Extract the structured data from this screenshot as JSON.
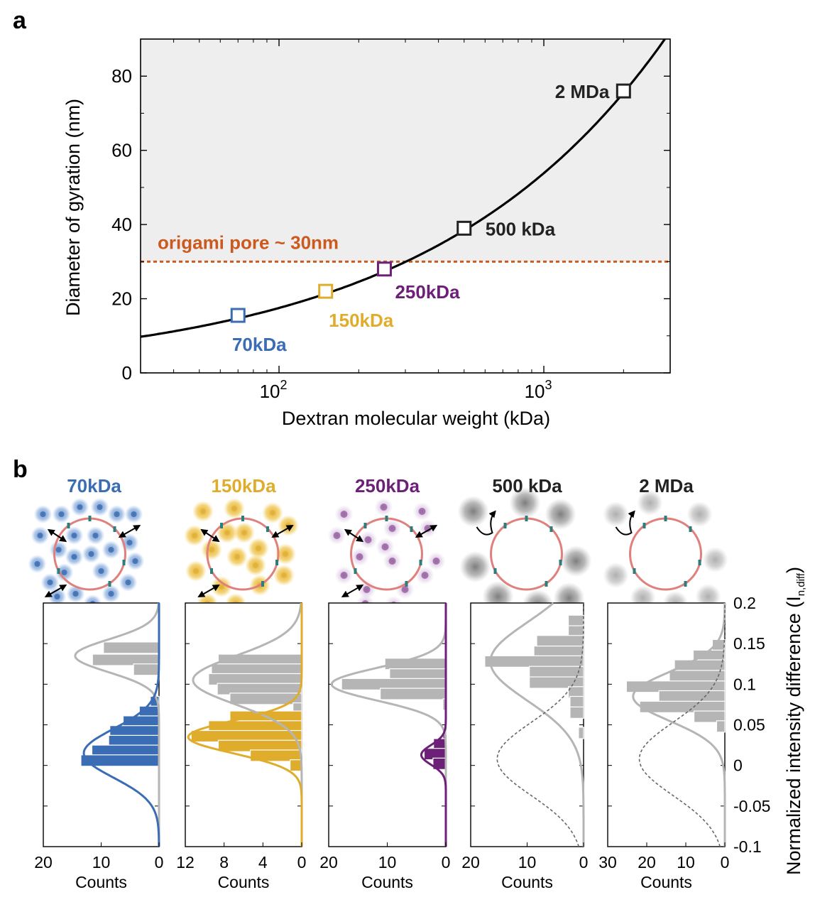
{
  "panel_a": {
    "letter": "a",
    "colors": {
      "shade": "#eeeeee",
      "curve": "#000000",
      "threshold": "#cc5a1e"
    },
    "chart_data": {
      "type": "line",
      "xlabel": "Dextran molecular weight (kDa)",
      "ylabel": "Diameter of gyration (nm)",
      "xscale": "log",
      "xlim": [
        30,
        3000
      ],
      "ylim": [
        0,
        90
      ],
      "yticks": [
        0,
        20,
        40,
        60,
        80
      ],
      "xticks": [
        {
          "value": 100,
          "base": "10",
          "exp": "2"
        },
        {
          "value": 1000,
          "base": "10",
          "exp": "3"
        }
      ],
      "grid": false,
      "curve": {
        "coef": 0.0855,
        "exponent": 0.5,
        "x_range": [
          30,
          3000
        ]
      },
      "shaded_region": {
        "y_from": 30,
        "y_to": 90
      },
      "threshold": {
        "y": 30,
        "label": "origami pore ~ 30nm"
      },
      "points": [
        {
          "x": 70,
          "y": 15.5,
          "label": "70kDa",
          "color": "#3a6db3",
          "label_pos": "below"
        },
        {
          "x": 150,
          "y": 22,
          "label": "150kDa",
          "color": "#e0ac2b",
          "label_pos": "below"
        },
        {
          "x": 250,
          "y": 28,
          "label": "250kDa",
          "color": "#6d2077",
          "label_pos": "below-right"
        },
        {
          "x": 500,
          "y": 39,
          "label": "500 kDa",
          "color": "#222222",
          "label_pos": "right"
        },
        {
          "x": 2000,
          "y": 76,
          "label": "2 MDa",
          "color": "#222222",
          "label_pos": "left"
        }
      ]
    }
  },
  "panel_b": {
    "letter": "b",
    "ylabel_main": "Normalized intensity difference (I",
    "ylabel_sub": "n,diff",
    "ylabel_close": ")",
    "xlabel": "Counts",
    "ylim": [
      -0.1,
      0.2
    ],
    "yticks": [
      "0.2",
      "0.15",
      "0.1",
      "0.05",
      "0",
      "-0.05",
      "-0.1"
    ],
    "gray_color": "#b5b5b5",
    "chart_data": [
      {
        "type": "bar",
        "title": "70kDa",
        "title_color": "#3a6db3",
        "color": "#3a6db3",
        "xlim": [
          20,
          0
        ],
        "xticks": [
          "20",
          "10",
          "0"
        ],
        "gray_gauss": {
          "mu": 0.135,
          "sigma": 0.02,
          "amp": 14.5
        },
        "color_gauss": {
          "mu": 0.015,
          "sigma": 0.03,
          "amp": 13
        },
        "gray_bins": [
          {
            "y": 0.145,
            "count": 9.6
          },
          {
            "y": 0.13,
            "count": 11.5
          },
          {
            "y": 0.118,
            "count": 4.4
          }
        ],
        "color_bins": [
          {
            "y": 0.078,
            "count": 1.5
          },
          {
            "y": 0.066,
            "count": 3.4
          },
          {
            "y": 0.054,
            "count": 6.2
          },
          {
            "y": 0.042,
            "count": 8.5
          },
          {
            "y": 0.03,
            "count": 8.7
          },
          {
            "y": 0.018,
            "count": 11.6
          },
          {
            "y": 0.006,
            "count": 13.5
          }
        ],
        "gray_dashed": false
      },
      {
        "type": "bar",
        "title": "150kDa",
        "title_color": "#e0ac2b",
        "color": "#e0ac2b",
        "xlim": [
          12,
          0
        ],
        "xticks": [
          "12",
          "8",
          "4",
          "0"
        ],
        "gray_gauss": {
          "mu": 0.105,
          "sigma": 0.03,
          "amp": 11.2
        },
        "color_gauss": {
          "mu": 0.035,
          "sigma": 0.02,
          "amp": 11.7
        },
        "gray_bins": [
          {
            "y": 0.13,
            "count": 8.6
          },
          {
            "y": 0.118,
            "count": 9.3
          },
          {
            "y": 0.106,
            "count": 9.6
          },
          {
            "y": 0.094,
            "count": 8.7
          },
          {
            "y": 0.082,
            "count": 7.4
          },
          {
            "y": 0.07,
            "count": 0.9
          }
        ],
        "color_bins": [
          {
            "y": 0.06,
            "count": 7.4
          },
          {
            "y": 0.048,
            "count": 9.6
          },
          {
            "y": 0.036,
            "count": 11.4
          },
          {
            "y": 0.024,
            "count": 8.6
          },
          {
            "y": 0.012,
            "count": 5.3
          },
          {
            "y": 0.0,
            "count": 1.2
          }
        ],
        "gray_dashed": false
      },
      {
        "type": "bar",
        "title": "250kDa",
        "title_color": "#6d2077",
        "color": "#6d2077",
        "xlim": [
          20,
          0
        ],
        "xticks": [
          "20",
          "10",
          "0"
        ],
        "gray_gauss": {
          "mu": 0.1,
          "sigma": 0.02,
          "amp": 19.5
        },
        "color_gauss": {
          "mu": 0.013,
          "sigma": 0.012,
          "amp": 4.2
        },
        "gray_bins": [
          {
            "y": 0.125,
            "count": 10.4
          },
          {
            "y": 0.112,
            "count": 9.6
          },
          {
            "y": 0.1,
            "count": 17.8
          },
          {
            "y": 0.088,
            "count": 11.2
          },
          {
            "y": 0.075,
            "count": 0.5
          }
        ],
        "color_bins": [
          {
            "y": 0.038,
            "count": 0.5
          },
          {
            "y": 0.026,
            "count": 2.1
          },
          {
            "y": 0.014,
            "count": 3.7
          },
          {
            "y": 0.002,
            "count": 2.2
          }
        ],
        "gray_dashed": false
      },
      {
        "type": "bar",
        "title": "500 kDa",
        "title_color": "#222222",
        "color": "#222222",
        "xlim": [
          20,
          0
        ],
        "xticks": [
          "20",
          "10",
          "0"
        ],
        "gray_gauss": {
          "mu": 0.128,
          "sigma": 0.048,
          "amp": 16.5
        },
        "dashed_gauss": {
          "mu": 0.008,
          "sigma": 0.045,
          "amp": 15.3
        },
        "gray_bins": [
          {
            "y": 0.178,
            "count": 2.7
          },
          {
            "y": 0.165,
            "count": 2.7
          },
          {
            "y": 0.153,
            "count": 8.3
          },
          {
            "y": 0.14,
            "count": 8.8
          },
          {
            "y": 0.128,
            "count": 17.5
          },
          {
            "y": 0.115,
            "count": 9.6
          },
          {
            "y": 0.102,
            "count": 9.6
          },
          {
            "y": 0.09,
            "count": 2.7
          },
          {
            "y": 0.078,
            "count": 2.4
          },
          {
            "y": 0.065,
            "count": 2.4
          },
          {
            "y": 0.04,
            "count": 0.9
          }
        ],
        "color_bins": [],
        "gray_dashed": false
      },
      {
        "type": "bar",
        "title": "2 MDa",
        "title_color": "#222222",
        "color": "#222222",
        "xlim": [
          30,
          0
        ],
        "xticks": [
          "30",
          "20",
          "10",
          "0"
        ],
        "gray_gauss": {
          "mu": 0.085,
          "sigma": 0.03,
          "amp": 23.5
        },
        "dashed_gauss": {
          "mu": 0.008,
          "sigma": 0.045,
          "amp": 21.9
        },
        "gray_bins": [
          {
            "y": 0.148,
            "count": 3.2
          },
          {
            "y": 0.135,
            "count": 8.1
          },
          {
            "y": 0.123,
            "count": 12.9
          },
          {
            "y": 0.11,
            "count": 14.2
          },
          {
            "y": 0.097,
            "count": 25.2
          },
          {
            "y": 0.085,
            "count": 16.9
          },
          {
            "y": 0.072,
            "count": 21.8
          },
          {
            "y": 0.06,
            "count": 7.9
          },
          {
            "y": 0.048,
            "count": 2.1
          }
        ],
        "color_bins": [],
        "gray_dashed": false
      }
    ]
  }
}
